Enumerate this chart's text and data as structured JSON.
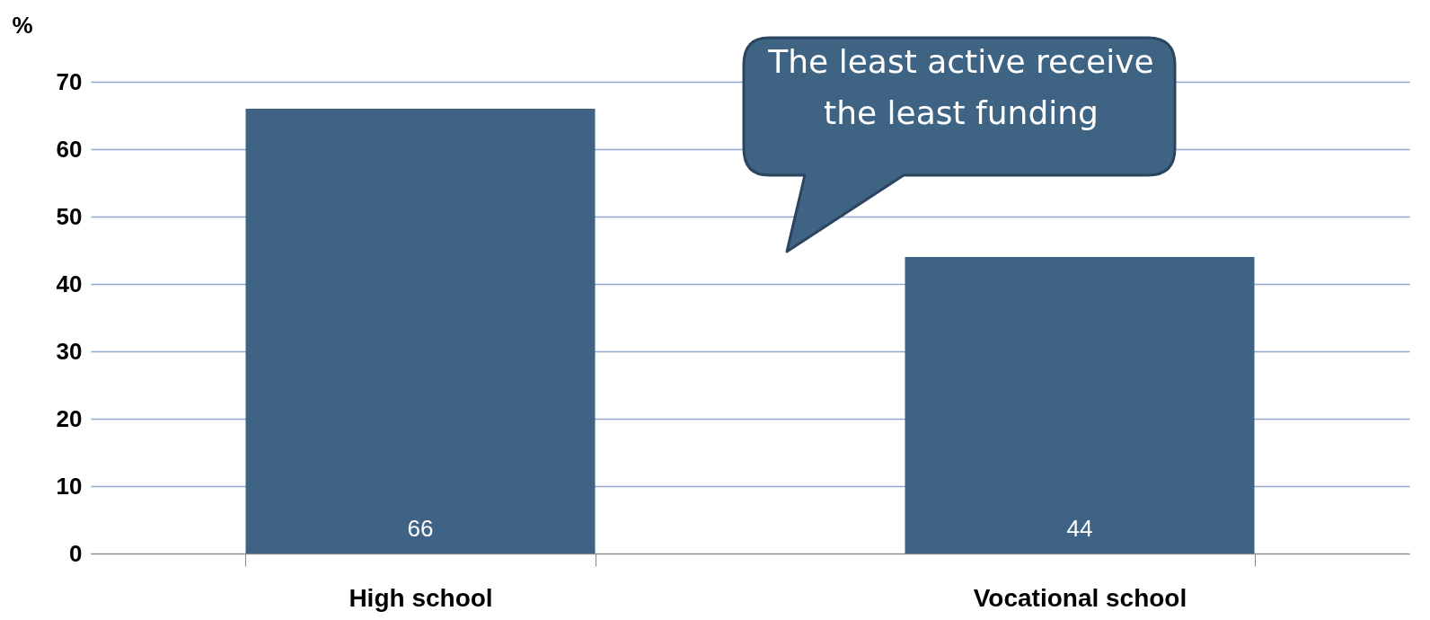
{
  "chart_data": {
    "type": "bar",
    "ylabel": "%",
    "categories": [
      "High school",
      "Vocational school"
    ],
    "values": [
      66,
      44
    ],
    "color": "#3f6384",
    "ylim": [
      0,
      70
    ],
    "yticks": [
      0,
      10,
      20,
      30,
      40,
      50,
      60,
      70
    ],
    "grid": "y",
    "data_labels": true,
    "annotations": [
      "The least active receive the least funding"
    ]
  }
}
